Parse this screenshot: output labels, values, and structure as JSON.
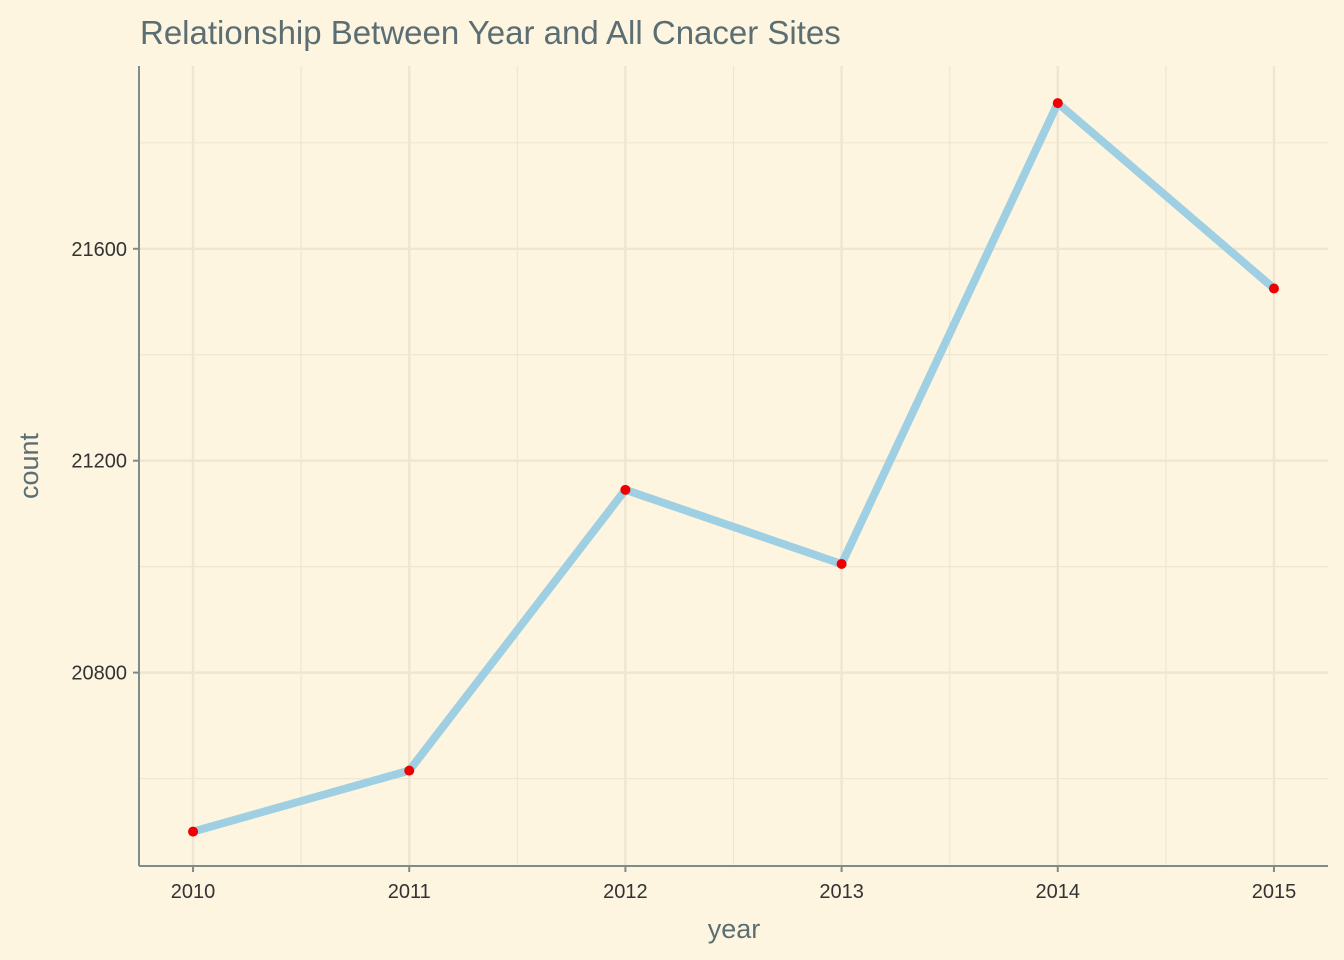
{
  "chart_data": {
    "type": "line",
    "title": "Relationship Between Year and All Cnacer Sites",
    "xlabel": "year",
    "ylabel": "count",
    "x": [
      2010,
      2011,
      2012,
      2013,
      2014,
      2015
    ],
    "series": [
      {
        "values": [
          20500,
          20615,
          21145,
          21005,
          21875,
          21525
        ]
      }
    ],
    "xlim": [
      2009.75,
      2015.25
    ],
    "ylim": [
      20435,
      21945
    ],
    "y_ticks": [
      20800,
      21200,
      21600
    ],
    "x_ticks": [
      2010,
      2011,
      2012,
      2013,
      2014,
      2015
    ],
    "grid": true,
    "legend": "none"
  },
  "colors": {
    "background": "#fdf5df",
    "grid": "#eee6d2",
    "axis": "#7f8c8d",
    "line": "#9fcfe2",
    "points": "#ee0000"
  }
}
